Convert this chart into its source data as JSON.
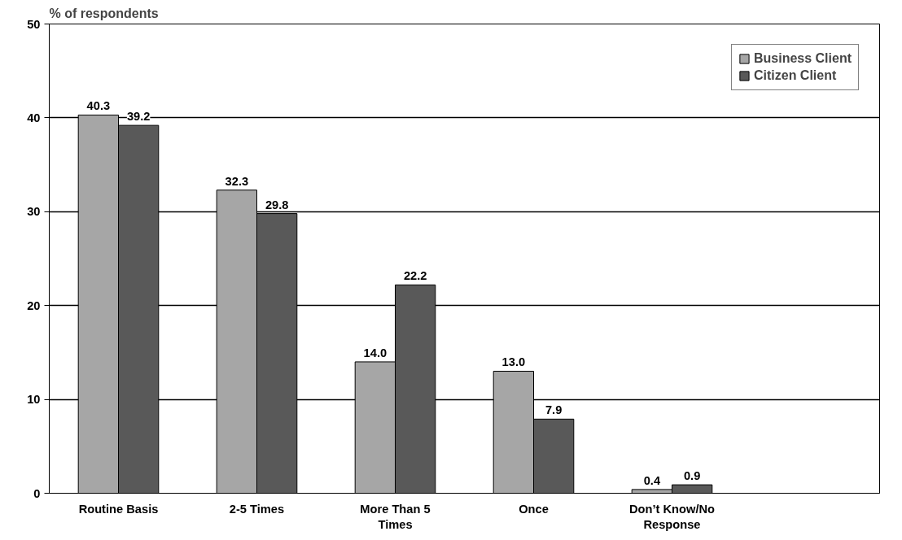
{
  "chart_data": {
    "type": "bar",
    "ylabel": "% of respondents",
    "categories": [
      "Routine Basis",
      "2-5 Times",
      "More Than 5 Times",
      "Once",
      "Don’t Know/No Response",
      null
    ],
    "series": [
      {
        "name": "Business Client",
        "color": "#a6a6a6",
        "values": [
          40.3,
          32.3,
          14.0,
          13.0,
          0.4,
          null
        ],
        "value_labels": [
          "40.3",
          "32.3",
          "14.0",
          "13.0",
          "0.4",
          null
        ]
      },
      {
        "name": "Citizen Client",
        "color": "#595959",
        "values": [
          39.2,
          29.8,
          22.2,
          7.9,
          0.9,
          null
        ],
        "value_labels": [
          "39.2",
          "29.8",
          "22.2",
          "7.9",
          "0.9",
          null
        ]
      }
    ],
    "ylim": [
      0,
      50
    ],
    "yticks": [
      0,
      10,
      20,
      30,
      40,
      50
    ],
    "grid": "y",
    "legend": "top right"
  }
}
